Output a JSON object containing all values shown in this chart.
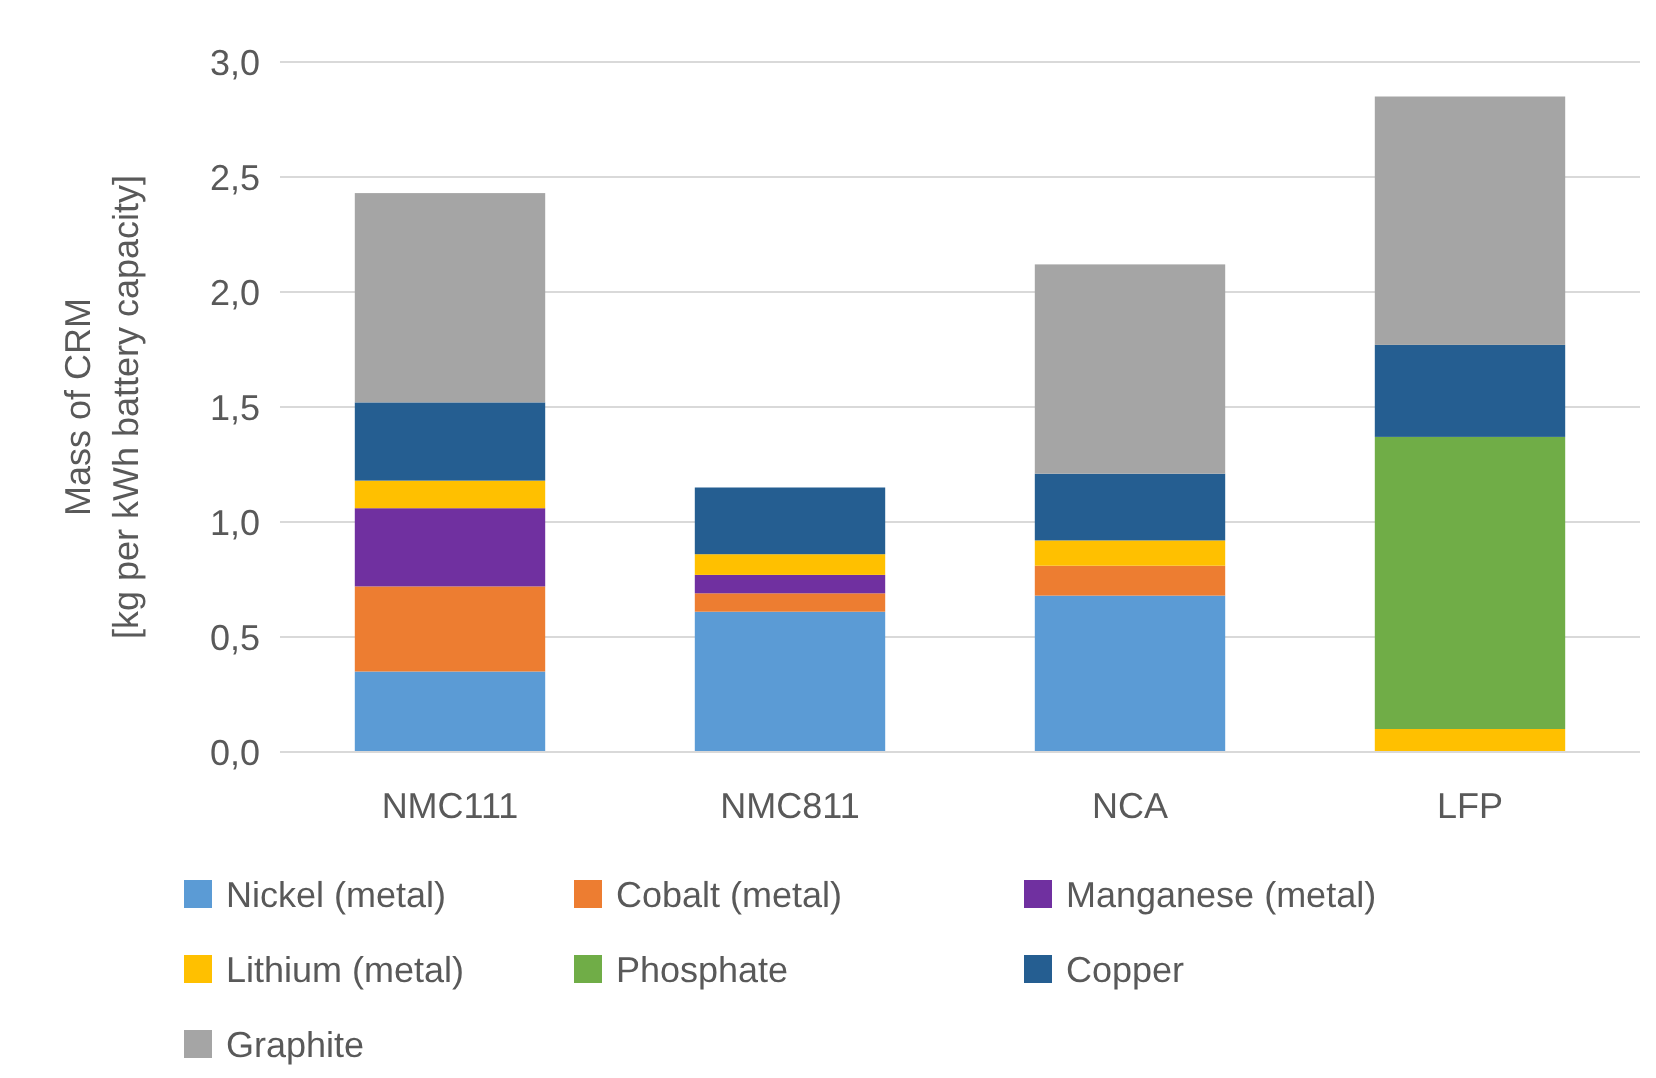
{
  "chart_data": {
    "type": "bar",
    "stacked": true,
    "ylabel": "Mass of CRM\n[kg per kWh battery capacity]",
    "categories": [
      "NMC111",
      "NMC811",
      "NCA",
      "LFP"
    ],
    "series": [
      {
        "name": "Nickel (metal)",
        "color": "#5b9bd5",
        "values": [
          0.35,
          0.61,
          0.68,
          0
        ]
      },
      {
        "name": "Cobalt (metal)",
        "color": "#ed7d31",
        "values": [
          0.37,
          0.08,
          0.13,
          0
        ]
      },
      {
        "name": "Manganese (metal)",
        "color": "#7030a0",
        "values": [
          0.34,
          0.08,
          0,
          0
        ]
      },
      {
        "name": "Lithium (metal)",
        "color": "#ffc000",
        "values": [
          0.12,
          0.09,
          0.11,
          0.1
        ]
      },
      {
        "name": "Phosphate",
        "color": "#70ad47",
        "values": [
          0,
          0,
          0,
          1.27
        ]
      },
      {
        "name": "Copper",
        "color": "#255e91",
        "values": [
          0.34,
          0.29,
          0.29,
          0.4
        ]
      },
      {
        "name": "Graphite",
        "color": "#a5a5a5",
        "values": [
          0.91,
          0,
          0.91,
          1.08
        ]
      }
    ],
    "ylim": [
      0,
      3
    ],
    "yticks": [
      {
        "value": 0,
        "label": "0,0"
      },
      {
        "value": 0.5,
        "label": "0,5"
      },
      {
        "value": 1,
        "label": "1,0"
      },
      {
        "value": 1.5,
        "label": "1,5"
      },
      {
        "value": 2,
        "label": "2,0"
      },
      {
        "value": 2.5,
        "label": "2,5"
      },
      {
        "value": 3,
        "label": "3,0"
      }
    ],
    "grid": "y",
    "legend": "bottom"
  }
}
